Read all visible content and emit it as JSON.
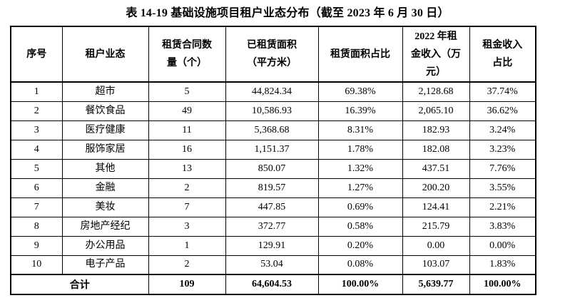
{
  "title": "表 14-19 基础设施项目租户业态分布（截至 2023 年 6 月 30 日）",
  "table": {
    "headers": [
      "序号",
      "租户业态",
      "租赁合同数\n量（个）",
      "已租赁面积\n（平方米）",
      "租赁面积占比",
      "2022 年租\n金收入（万\n元）",
      "租金收入\n占比"
    ],
    "rows": [
      [
        "1",
        "超市",
        "5",
        "44,824.34",
        "69.38%",
        "2,128.68",
        "37.74%"
      ],
      [
        "2",
        "餐饮食品",
        "49",
        "10,586.93",
        "16.39%",
        "2,065.10",
        "36.62%"
      ],
      [
        "3",
        "医疗健康",
        "11",
        "5,368.68",
        "8.31%",
        "182.93",
        "3.24%"
      ],
      [
        "4",
        "服饰家居",
        "16",
        "1,151.37",
        "1.78%",
        "182.08",
        "3.23%"
      ],
      [
        "5",
        "其他",
        "13",
        "850.07",
        "1.32%",
        "437.51",
        "7.76%"
      ],
      [
        "6",
        "金融",
        "2",
        "819.57",
        "1.27%",
        "200.20",
        "3.55%"
      ],
      [
        "7",
        "美妆",
        "7",
        "447.85",
        "0.69%",
        "124.41",
        "2.21%"
      ],
      [
        "8",
        "房地产经纪",
        "3",
        "372.77",
        "0.58%",
        "215.79",
        "3.83%"
      ],
      [
        "9",
        "办公用品",
        "1",
        "129.91",
        "0.20%",
        "0.00",
        "0.00%"
      ],
      [
        "10",
        "电子产品",
        "2",
        "53.04",
        "0.08%",
        "103.07",
        "1.83%"
      ]
    ],
    "total": {
      "label": "合计",
      "contract_count": "109",
      "leased_area": "64,604.53",
      "area_share": "100.00%",
      "rent_income": "5,639.77",
      "income_share": "100.00%"
    }
  },
  "colors": {
    "text": "#000000",
    "border": "#000000",
    "background": "#ffffff"
  }
}
